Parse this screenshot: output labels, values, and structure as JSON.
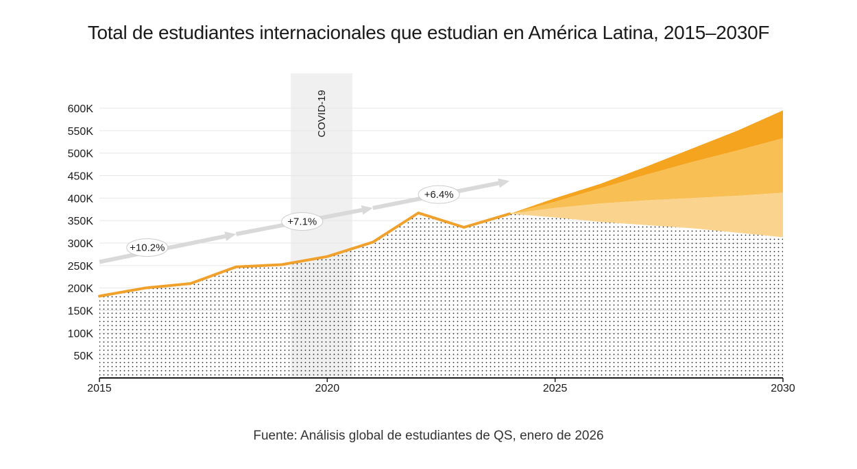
{
  "chart_data": {
    "type": "area",
    "title": "Total de estudiantes internacionales que estudian en América Latina, 2015–2030F",
    "source": "Fuente: Análisis global de estudiantes de QS, enero de 2026",
    "xlabel": "",
    "ylabel": "",
    "xlim": [
      2015,
      2030
    ],
    "ylim": [
      0,
      600000
    ],
    "x_ticks": [
      2015,
      2020,
      2025,
      2030
    ],
    "x_tick_labels": [
      "2015",
      "2020",
      "2025",
      "2030"
    ],
    "y_ticks": [
      50000,
      100000,
      150000,
      200000,
      250000,
      300000,
      350000,
      400000,
      450000,
      500000,
      550000,
      600000
    ],
    "y_tick_labels": [
      "50K",
      "100K",
      "150K",
      "200K",
      "250K",
      "300K",
      "350K",
      "400K",
      "450K",
      "500K",
      "550K",
      "600K"
    ],
    "grid": true,
    "historical": {
      "name": "Estudiantes internacionales",
      "x": [
        2015,
        2016,
        2017,
        2018,
        2019,
        2020,
        2021,
        2022,
        2023,
        2024
      ],
      "values": [
        182000,
        200000,
        210000,
        247000,
        252000,
        270000,
        302000,
        367000,
        335000,
        365000
      ]
    },
    "forecast": {
      "x": [
        2024,
        2025,
        2026,
        2027,
        2028,
        2029,
        2030
      ],
      "base": [
        365000,
        357000,
        347000,
        340000,
        333000,
        323000,
        313000
      ],
      "low": [
        365000,
        378000,
        388000,
        395000,
        400000,
        405000,
        412000
      ],
      "mid": [
        365000,
        392000,
        422000,
        452000,
        480000,
        506000,
        533000
      ],
      "high": [
        365000,
        400000,
        432000,
        470000,
        510000,
        550000,
        595000
      ]
    },
    "covid_band": {
      "label": "COVID-19",
      "x_start": 2019.2,
      "x_end": 2020.55
    },
    "growth_annotations": [
      {
        "label": "+10.2%",
        "x_start": 2015,
        "y_start": 258000,
        "x_end": 2018,
        "y_end": 320000,
        "label_x": 2016.05,
        "label_y": 290000
      },
      {
        "label": "+7.1%",
        "x_start": 2018,
        "y_start": 320000,
        "x_end": 2021,
        "y_end": 378000,
        "label_x": 2019.45,
        "label_y": 348000
      },
      {
        "label": "+6.4%",
        "x_start": 2021,
        "y_start": 378000,
        "x_end": 2024,
        "y_end": 438000,
        "label_x": 2022.45,
        "label_y": 408000
      }
    ],
    "colors": {
      "line": "#f0a12c",
      "high_band": "#f4a41f",
      "mid_band": "#f8bf55",
      "low_band": "#fad48f",
      "covid": "#f0f0f0",
      "arrow": "#d9d9d9",
      "dots": "#1a1a1a"
    }
  }
}
